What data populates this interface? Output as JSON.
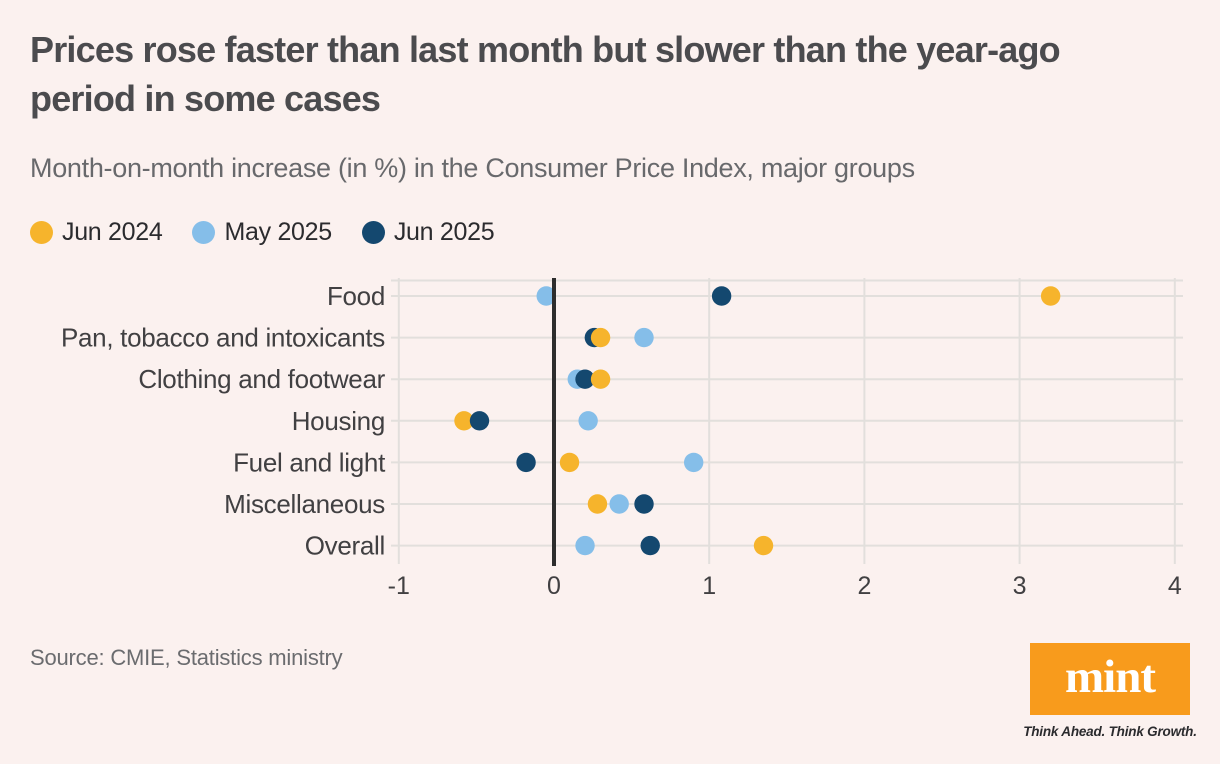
{
  "header": {
    "title": "Prices rose faster than last month but slower than the year-ago period in some cases",
    "subtitle": "Month-on-month increase (in %) in the Consumer Price Index, major groups"
  },
  "chart_data": {
    "type": "scatter",
    "subtype": "horizontal-dot-plot",
    "title": "Prices rose faster than last month but slower than the year-ago period in some cases",
    "xlabel": "",
    "ylabel": "",
    "xlim": [
      -1,
      4
    ],
    "xticks": [
      -1,
      0,
      1,
      2,
      3,
      4
    ],
    "grid": true,
    "zero_line": true,
    "legend_position": "top-left",
    "categories": [
      "Food",
      "Pan, tobacco and intoxicants",
      "Clothing and footwear",
      "Housing",
      "Fuel and light",
      "Miscellaneous",
      "Overall"
    ],
    "series": [
      {
        "name": "Jun 2024",
        "color": "#F6B42C",
        "values": [
          3.2,
          0.3,
          0.3,
          -0.58,
          0.1,
          0.28,
          1.35
        ]
      },
      {
        "name": "May 2025",
        "color": "#85BEE9",
        "values": [
          -0.05,
          0.58,
          0.15,
          0.22,
          0.9,
          0.42,
          0.2
        ]
      },
      {
        "name": "Jun 2025",
        "color": "#14486F",
        "values": [
          1.08,
          0.26,
          0.2,
          -0.48,
          -0.18,
          0.58,
          0.62
        ]
      }
    ],
    "draw_order": [
      [
        0,
        1,
        2
      ],
      [
        2,
        0,
        1
      ],
      [
        1,
        2,
        0
      ],
      [
        0,
        2,
        1
      ],
      [
        0,
        1,
        2
      ],
      [
        0,
        1,
        2
      ],
      [
        1,
        2,
        0
      ]
    ]
  },
  "footer": {
    "source": "Source: CMIE, Statistics ministry",
    "logo_text": "mint",
    "tagline": "Think Ahead. Think Growth."
  },
  "colors": {
    "background": "#FBF1EF",
    "grid": "#E2DFDC",
    "zero_line": "#2D2D2D",
    "title": "#4B4B4E",
    "subtitle": "#68696C",
    "axis_text": "#414042",
    "source_text": "#6B6C6F",
    "logo_orange": "#F89B1C"
  }
}
